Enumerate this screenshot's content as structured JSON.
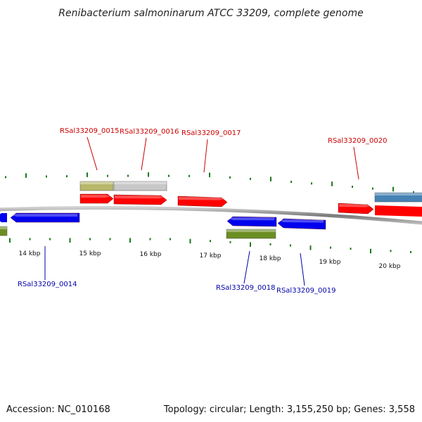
{
  "title": "Renibacterium salmoninarum ATCC 33209, complete genome",
  "footer": {
    "accession": "Accession: NC_010168",
    "topology": "Topology: circular; Length: 3,155,250 bp; Genes: 3,558"
  },
  "colors": {
    "forward_label": "#cc0000",
    "reverse_label": "#0000aa",
    "tick": "#1a7a1a",
    "backbone": "#888888",
    "red_gene": "#ff0000",
    "blue_gene": "#0000ee",
    "olive_gene": "#b8b86a",
    "grey_gene": "#c8c8c8",
    "green_gene": "#6b8e23",
    "steel_gene": "#4682b4"
  },
  "scale_labels": [
    "14 kbp",
    "15 kbp",
    "16 kbp",
    "17 kbp",
    "18 kbp",
    "19 kbp",
    "20 kbp"
  ],
  "genes": [
    {
      "id": "g-14",
      "label": "RSal33209_0014",
      "strand": "reverse",
      "color": "blue_gene"
    },
    {
      "id": "g-15",
      "label": "RSal33209_0015",
      "strand": "forward",
      "color": "red_gene"
    },
    {
      "id": "g-16",
      "label": "RSal33209_0016",
      "strand": "forward",
      "color": "red_gene"
    },
    {
      "id": "g-17",
      "label": "RSal33209_0017",
      "strand": "forward",
      "color": "red_gene"
    },
    {
      "id": "g-18",
      "label": "RSal33209_0018",
      "strand": "reverse",
      "color": "blue_gene"
    },
    {
      "id": "g-19",
      "label": "RSal33209_0019",
      "strand": "reverse",
      "color": "blue_gene"
    },
    {
      "id": "g-20",
      "label": "RSal33209_0020",
      "strand": "forward",
      "color": "red_gene"
    }
  ]
}
